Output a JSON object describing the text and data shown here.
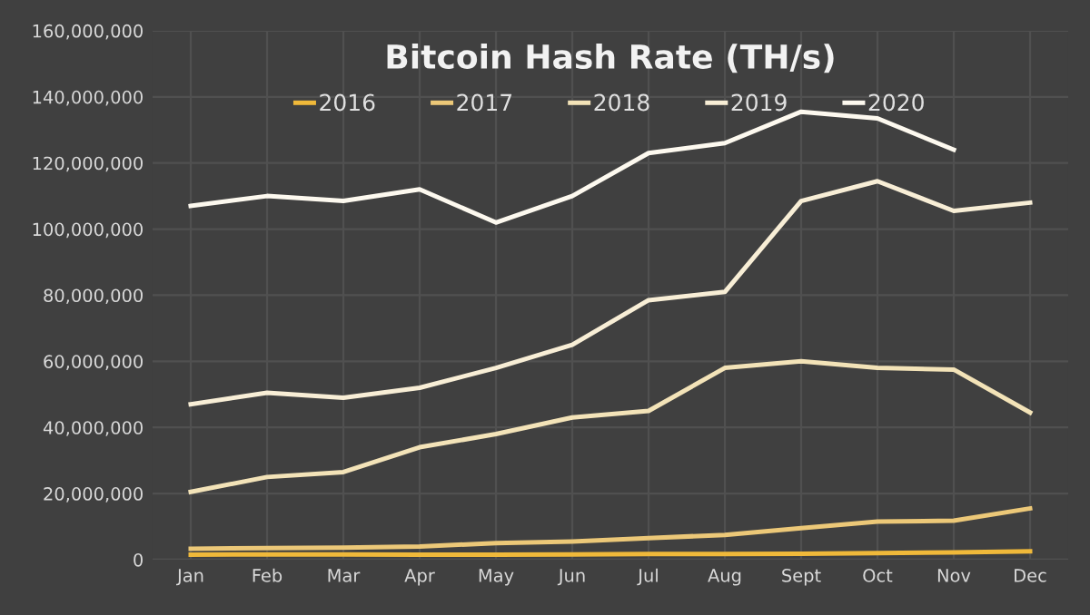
{
  "chart_data": {
    "type": "line",
    "title": "Bitcoin Hash Rate (TH/s)",
    "categories": [
      "Jan",
      "Feb",
      "Mar",
      "Apr",
      "May",
      "Jun",
      "Jul",
      "Aug",
      "Sept",
      "Oct",
      "Nov",
      "Dec"
    ],
    "series": [
      {
        "name": "2016",
        "color": "#f0b93a",
        "values": [
          1500000,
          1600000,
          1600000,
          1500000,
          1500000,
          1600000,
          1700000,
          1700000,
          1800000,
          2000000,
          2200000,
          2500000
        ]
      },
      {
        "name": "2017",
        "color": "#ecc878",
        "values": [
          3300000,
          3500000,
          3600000,
          4000000,
          5000000,
          5500000,
          6500000,
          7500000,
          9500000,
          11500000,
          11800000,
          15500000
        ]
      },
      {
        "name": "2018",
        "color": "#f3e3b8",
        "values": [
          20500000,
          25000000,
          26500000,
          34000000,
          38000000,
          43000000,
          45000000,
          58000000,
          60000000,
          58000000,
          57500000,
          44500000
        ]
      },
      {
        "name": "2019",
        "color": "#f8eed6",
        "values": [
          47000000,
          50500000,
          49000000,
          52000000,
          58000000,
          65000000,
          78500000,
          81000000,
          108500000,
          114500000,
          105500000,
          108000000
        ]
      },
      {
        "name": "2020",
        "color": "#fdf9ef",
        "values": [
          107000000,
          110000000,
          108500000,
          112000000,
          102000000,
          110000000,
          123000000,
          126000000,
          135500000,
          133500000,
          124000000,
          null
        ]
      }
    ],
    "ylim": [
      0,
      160000000
    ],
    "yticks": [
      {
        "value": 0,
        "label": "0"
      },
      {
        "value": 20000000,
        "label": "20,000,000"
      },
      {
        "value": 40000000,
        "label": "40,000,000"
      },
      {
        "value": 60000000,
        "label": "60,000,000"
      },
      {
        "value": 80000000,
        "label": "80,000,000"
      },
      {
        "value": 100000000,
        "label": "100,000,000"
      },
      {
        "value": 120000000,
        "label": "120,000,000"
      },
      {
        "value": 140000000,
        "label": "140,000,000"
      },
      {
        "value": 160000000,
        "label": "160,000,000"
      }
    ],
    "grid": true,
    "legend": "top",
    "marker": "none",
    "line_style": "solid"
  }
}
